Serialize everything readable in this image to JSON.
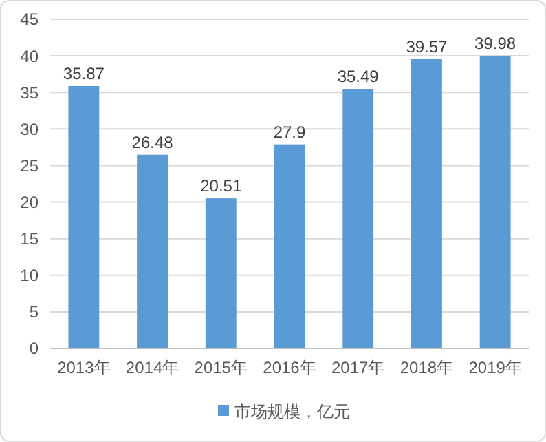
{
  "chart_data": {
    "type": "bar",
    "categories": [
      "2013年",
      "2014年",
      "2015年",
      "2016年",
      "2017年",
      "2018年",
      "2019年"
    ],
    "series": [
      {
        "name": "市场规模，亿元",
        "color": "#5b9bd5",
        "values": [
          35.87,
          26.48,
          20.51,
          27.9,
          35.49,
          39.57,
          39.98
        ]
      }
    ],
    "ylim": [
      0,
      45
    ],
    "yticks": [
      0,
      5,
      10,
      15,
      20,
      25,
      30,
      35,
      40,
      45
    ],
    "grid": "y",
    "legend": "bottom",
    "data_labels": true
  }
}
